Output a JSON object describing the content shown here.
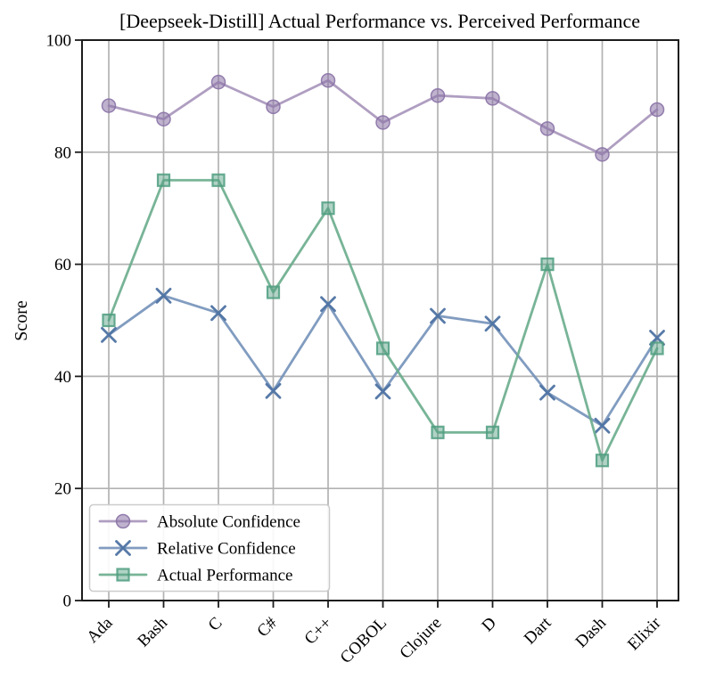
{
  "title": "[Deepseek-Distill] Actual Performance vs. Perceived Performance",
  "chart_data": {
    "type": "line",
    "title": "[Deepseek-Distill] Actual Performance vs. Perceived Performance",
    "xlabel": "",
    "ylabel": "Score",
    "ylim": [
      0,
      100
    ],
    "yticks": [
      0,
      20,
      40,
      60,
      80,
      100
    ],
    "grid": true,
    "legend_position": "lower left",
    "categories": [
      "Ada",
      "Bash",
      "C",
      "C#",
      "C++",
      "COBOL",
      "Clojure",
      "D",
      "Dart",
      "Dash",
      "Elixir"
    ],
    "series": [
      {
        "name": "Absolute Confidence",
        "marker": "circle",
        "color": "#a694ba",
        "marker_color": "#8a72a6",
        "values": [
          88.3,
          85.9,
          92.5,
          88.1,
          92.8,
          85.3,
          90.1,
          89.6,
          84.2,
          79.6,
          87.6
        ]
      },
      {
        "name": "Relative Confidence",
        "marker": "x",
        "color": "#7391b9",
        "marker_color": "#4e73a3",
        "values": [
          47.4,
          54.4,
          51.3,
          37.4,
          52.9,
          37.3,
          50.8,
          49.4,
          37.1,
          31.2,
          46.9
        ]
      },
      {
        "name": "Actual Performance",
        "marker": "square",
        "color": "#69ac8c",
        "marker_color": "#4f9e80",
        "values": [
          50,
          75,
          75,
          55,
          70,
          45,
          30,
          30,
          60,
          25,
          45
        ]
      }
    ],
    "colors": {
      "grid": "#b2b2b2",
      "spine": "#1c1c1c",
      "legend_border": "#cccccc",
      "background": "#ffffff"
    }
  }
}
